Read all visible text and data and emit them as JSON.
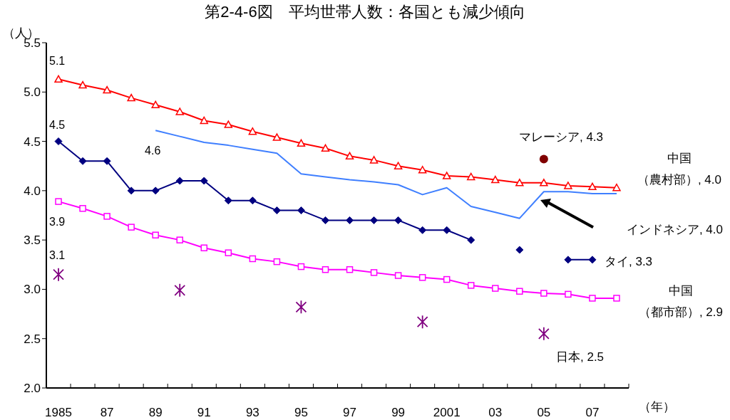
{
  "chart_data": {
    "type": "line",
    "title": "第2-4-6図　平均世帯人数：各国とも減少傾向",
    "ylabel": "（人）",
    "xlabel": "（年）",
    "categories": [
      "1985",
      null,
      "87",
      null,
      "89",
      null,
      "91",
      null,
      "93",
      null,
      "95",
      null,
      "97",
      null,
      "99",
      null,
      "2001",
      null,
      "03",
      null,
      "05",
      null,
      "07",
      null
    ],
    "ylim": [
      2.0,
      5.5
    ],
    "yticks": [
      {
        "value": 2.0,
        "label": "2.0"
      },
      {
        "value": 2.5,
        "label": "2.5"
      },
      {
        "value": 3.0,
        "label": "3.0"
      },
      {
        "value": 3.5,
        "label": "3.5"
      },
      {
        "value": 4.0,
        "label": "4.0"
      },
      {
        "value": 4.5,
        "label": "4.5"
      },
      {
        "value": 5.0,
        "label": "5.0"
      },
      {
        "value": 5.5,
        "label": "5.5"
      }
    ],
    "series": [
      {
        "marker": "triangle",
        "color": "#ff0000",
        "values": [
          5.13,
          5.07,
          5.02,
          4.94,
          4.87,
          4.8,
          4.71,
          4.67,
          4.6,
          4.54,
          4.48,
          4.43,
          4.35,
          4.31,
          4.25,
          4.21,
          4.15,
          4.14,
          4.11,
          4.08,
          4.08,
          4.05,
          4.04,
          4.03
        ],
        "value_labels": [
          "5.1",
          null,
          null,
          null,
          null,
          null,
          null,
          null,
          null,
          null,
          null,
          null,
          null,
          null,
          null,
          null,
          null,
          null,
          null,
          null,
          null,
          null,
          null,
          null
        ]
      },
      {
        "marker": "diamond",
        "color": "#000080",
        "values": [
          4.5,
          4.3,
          4.3,
          4.0,
          4.0,
          4.1,
          4.1,
          3.9,
          3.9,
          3.8,
          3.8,
          3.7,
          3.7,
          3.7,
          3.7,
          3.6,
          3.6,
          3.5,
          null,
          3.4,
          null,
          3.3,
          3.3,
          null
        ],
        "value_labels": [
          "4.5",
          null,
          null,
          null,
          null,
          null,
          null,
          null,
          null,
          null,
          null,
          null,
          null,
          null,
          null,
          null,
          null,
          null,
          null,
          null,
          null,
          null,
          null,
          null
        ]
      },
      {
        "marker": "none",
        "color": "#3f7fff",
        "values": [
          null,
          null,
          null,
          null,
          4.61,
          4.55,
          4.49,
          4.46,
          4.42,
          4.38,
          4.17,
          4.14,
          4.11,
          4.09,
          4.06,
          3.96,
          4.03,
          3.84,
          3.78,
          3.72,
          3.99,
          3.99,
          3.97,
          3.97
        ],
        "value_labels": [
          null,
          null,
          null,
          null,
          "4.6",
          null,
          null,
          null,
          null,
          null,
          null,
          null,
          null,
          null,
          null,
          null,
          null,
          null,
          null,
          null,
          null,
          null,
          null,
          null
        ]
      },
      {
        "marker": "square",
        "color": "#ff00ff",
        "values": [
          3.89,
          3.82,
          3.74,
          3.63,
          3.55,
          3.5,
          3.42,
          3.37,
          3.31,
          3.28,
          3.23,
          3.2,
          3.2,
          3.17,
          3.14,
          3.12,
          3.1,
          3.04,
          3.01,
          2.98,
          2.96,
          2.95,
          2.91,
          2.91
        ],
        "value_labels": [
          "3.9",
          null,
          null,
          null,
          null,
          null,
          null,
          null,
          null,
          null,
          null,
          null,
          null,
          null,
          null,
          null,
          null,
          null,
          null,
          null,
          null,
          null,
          null,
          null
        ]
      },
      {
        "type": "scatter",
        "marker": "cross",
        "color": "#800080",
        "values": [
          3.15,
          null,
          null,
          null,
          null,
          2.99,
          null,
          null,
          null,
          null,
          2.82,
          null,
          null,
          null,
          null,
          2.67,
          null,
          null,
          null,
          null,
          2.55,
          null,
          null,
          null
        ],
        "value_labels": [
          "3.1",
          null,
          null,
          null,
          null,
          null,
          null,
          null,
          null,
          null,
          null,
          null,
          null,
          null,
          null,
          null,
          null,
          null,
          null,
          null,
          null,
          null,
          null,
          null
        ]
      },
      {
        "type": "scatter",
        "marker": "circle",
        "color": "#800000",
        "values": [
          null,
          null,
          null,
          null,
          null,
          null,
          null,
          null,
          null,
          null,
          null,
          null,
          null,
          null,
          null,
          null,
          null,
          null,
          null,
          null,
          4.32,
          null,
          null,
          null
        ]
      }
    ],
    "annotations": [
      "マレーシア, 4.3",
      "中国（農村部）, 4.0",
      "インドネシア, 4.0",
      "タイ, 3.3",
      "中国（都市部）, 2.9",
      "日本, 2.5"
    ]
  }
}
